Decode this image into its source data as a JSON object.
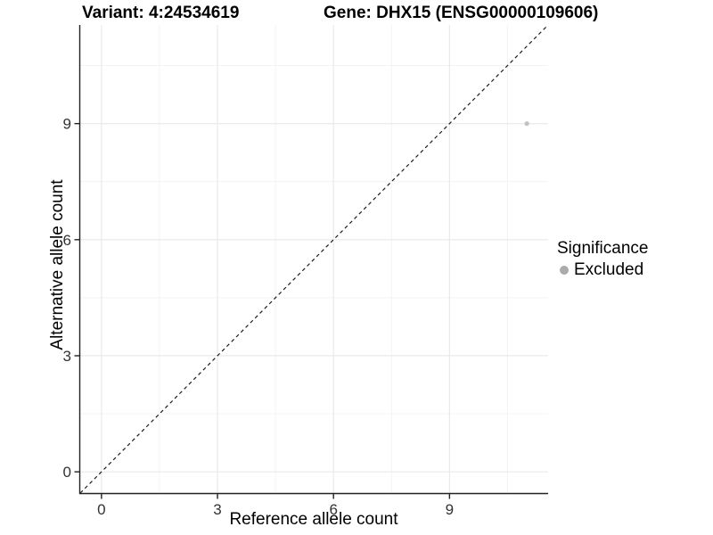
{
  "header": {
    "title_variant": "Variant: 4:24534619",
    "title_gene": "Gene: DHX15 (ENSG00000109606)"
  },
  "chart_data": {
    "type": "scatter",
    "title_left": "Variant: 4:24534619",
    "title_right": "Gene: DHX15 (ENSG00000109606)",
    "xlabel": "Reference allele count",
    "ylabel": "Alternative allele count",
    "xlim": [
      -0.55,
      11.55
    ],
    "ylim": [
      -0.55,
      11.55
    ],
    "xticks": [
      0,
      3,
      6,
      9
    ],
    "yticks": [
      0,
      3,
      6,
      9
    ],
    "x_minor_ticks": [
      1.5,
      4.5,
      7.5,
      10.5
    ],
    "y_minor_ticks": [
      1.5,
      4.5,
      7.5,
      10.5
    ],
    "grid": true,
    "legend_position": "right",
    "series": [
      {
        "name": "Excluded",
        "color": "#c2c2c2",
        "point_radius": 2.6,
        "points": [
          {
            "x": 11,
            "y": 9
          }
        ]
      }
    ],
    "reference_line": {
      "slope": 1,
      "intercept": 0,
      "style": "dashed",
      "color": "#1a1a1a"
    },
    "legend": {
      "title": "Significance",
      "entries": [
        {
          "label": "Excluded",
          "color": "#ababab"
        }
      ]
    },
    "colors": {
      "grid_major": "#e8e8e8",
      "grid_minor": "#f3f3f3",
      "axis_line": "#222222",
      "tick_text": "#333333"
    }
  }
}
